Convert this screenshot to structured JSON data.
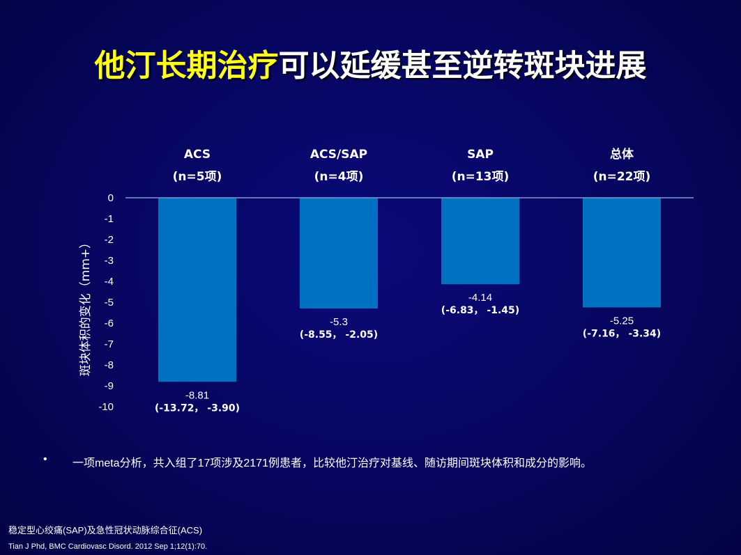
{
  "title": {
    "highlight": "他汀长期治疗",
    "rest": "可以延缓甚至逆转斑块进展",
    "highlight_color": "#ffff1a"
  },
  "chart_data": {
    "type": "bar",
    "ylabel": "斑块体积的变化（mm+）",
    "ylim": [
      -10,
      0
    ],
    "yticks": [
      "0",
      "-1",
      "-2",
      "-3",
      "-4",
      "-5",
      "-6",
      "-7",
      "-8",
      "-9",
      "-10"
    ],
    "categories": [
      {
        "name": "ACS",
        "n": "(n=5项)"
      },
      {
        "name": "ACS/SAP",
        "n": "(n=4项)"
      },
      {
        "name": "SAP",
        "n": "(n=13项)"
      },
      {
        "name": "总体",
        "n": "(n=22项)"
      }
    ],
    "values": [
      -8.81,
      -5.3,
      -4.14,
      -5.25
    ],
    "value_labels": [
      "-8.81",
      "-5.3",
      "-4.14",
      "-5.25"
    ],
    "ci_labels": [
      "(-13.72， -3.90)",
      "(-8.55， -2.05)",
      "(-6.83， -1.45)",
      "(-7.16， -3.34)"
    ],
    "bar_color": "#0070c0",
    "grid": false
  },
  "bullet": {
    "marker": "•",
    "text": "一项meta分析，共入组了17项涉及2171例患者，比较他汀治疗对基线、随访期间斑块体积和成分的影响。"
  },
  "footnotes": {
    "line1": "稳定型心绞痛(SAP)及急性冠状动脉综合征(ACS)",
    "line2": "Tian J Phd, BMC Cardiovasc Disord. 2012 Sep 1;12(1):70."
  }
}
